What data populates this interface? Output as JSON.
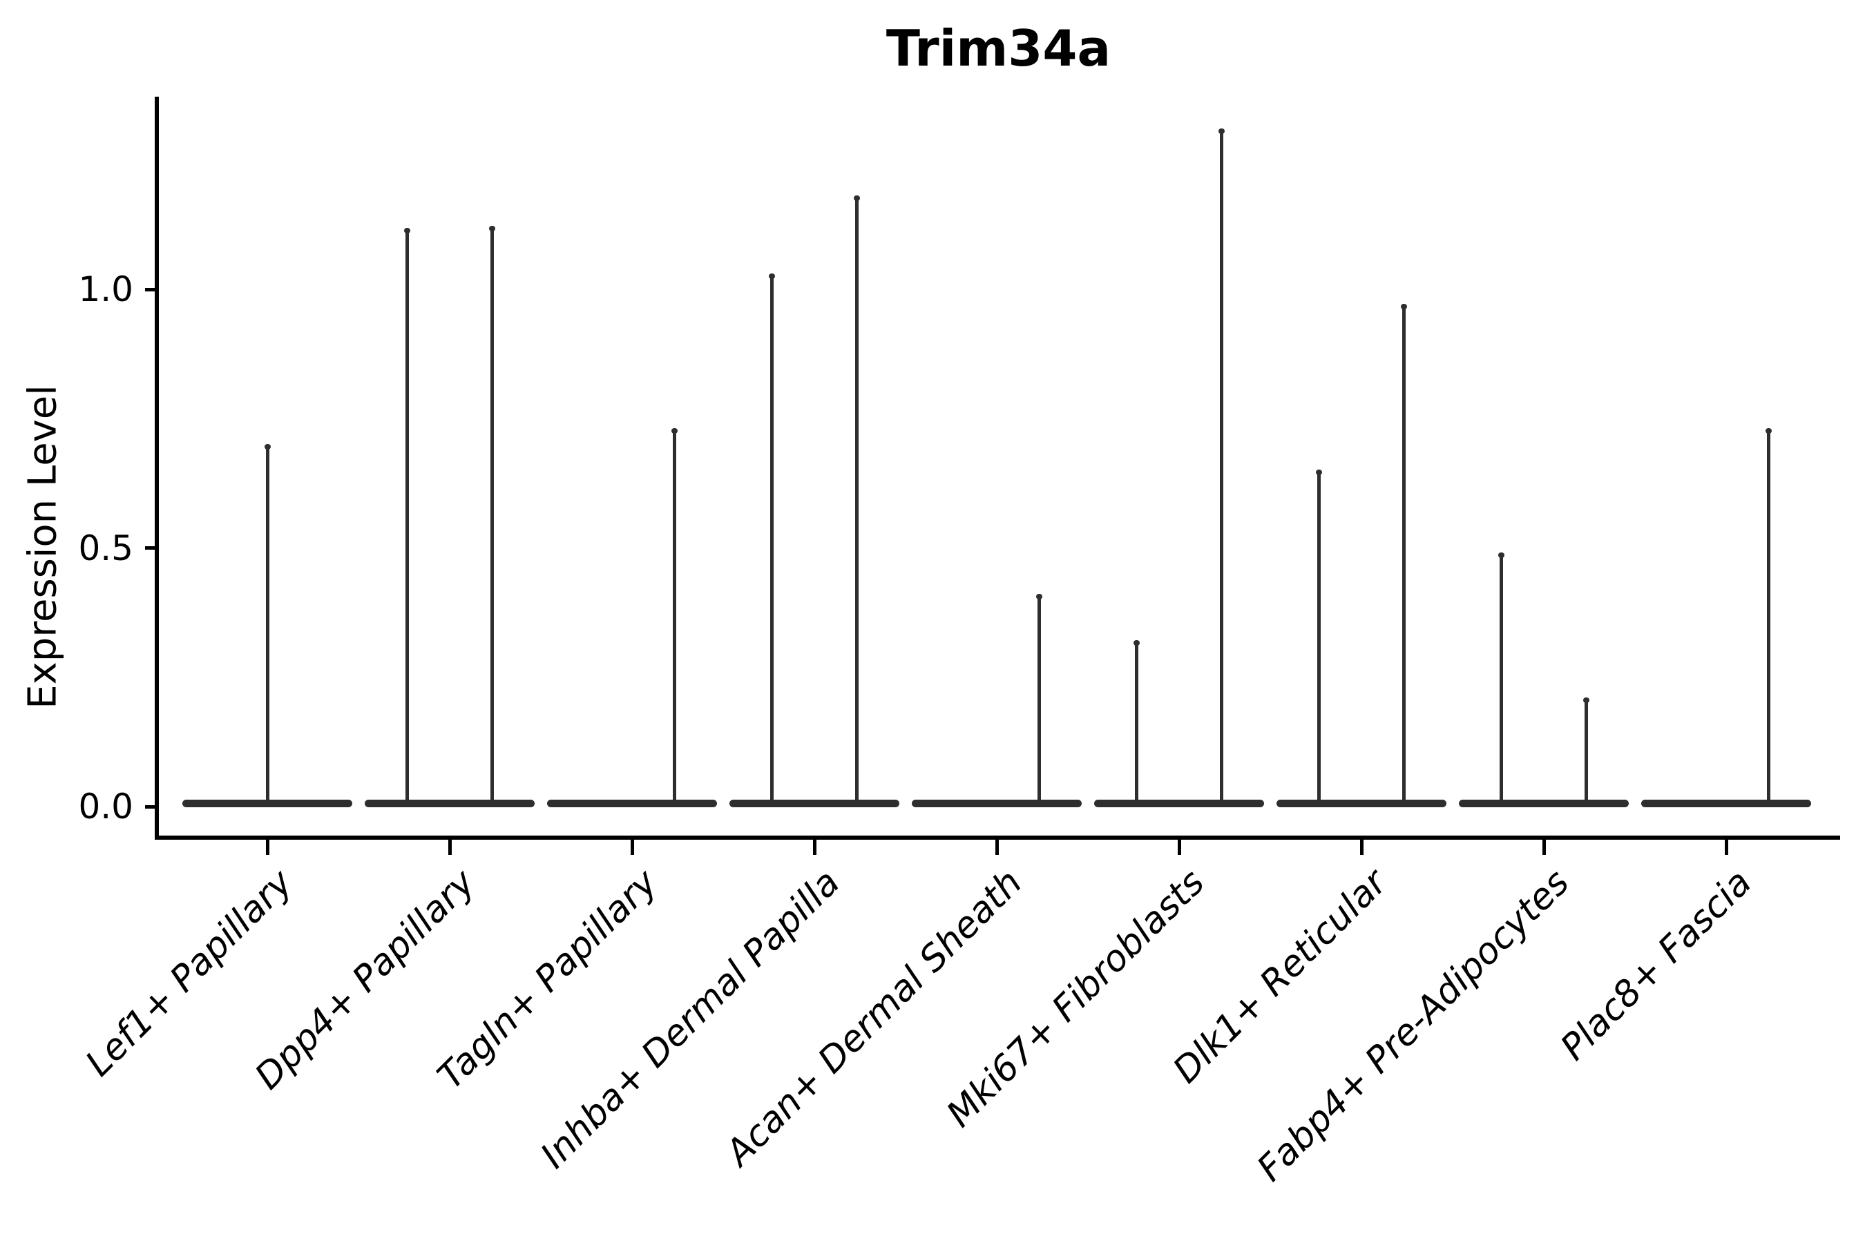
{
  "colors": {
    "violin": "#2e2e2e",
    "axis": "#000000",
    "text": "#000000",
    "background": "#ffffff"
  },
  "chart_data": {
    "type": "violin",
    "title": "Trim34a",
    "xlabel": "",
    "ylabel": "Expression Level",
    "ylim": [
      -0.06,
      1.37
    ],
    "grid": false,
    "legend": "none",
    "yticks": [
      {
        "value": 0.0,
        "label": "0.0"
      },
      {
        "value": 0.5,
        "label": "0.5"
      },
      {
        "value": 1.0,
        "label": "1.0"
      }
    ],
    "description": "Violin plot of Trim34a expression; each cell type shows a flat density bar at 0 with thin vertical density spikes reaching the maximum expression values.",
    "categories": [
      {
        "label": "Lef1+ Papillary",
        "spikes": [
          {
            "slot": "center",
            "value": 0.7
          }
        ]
      },
      {
        "label": "Dpp4+ Papillary",
        "spikes": [
          {
            "slot": "left",
            "value": 1.118
          },
          {
            "slot": "right",
            "value": 1.122
          }
        ]
      },
      {
        "label": "Tagln+ Papillary",
        "spikes": [
          {
            "slot": "right",
            "value": 0.73
          }
        ]
      },
      {
        "label": "Inhba+ Dermal Papilla",
        "spikes": [
          {
            "slot": "left",
            "value": 1.03
          },
          {
            "slot": "right",
            "value": 1.18
          }
        ]
      },
      {
        "label": "Acan+ Dermal Sheath",
        "spikes": [
          {
            "slot": "right",
            "value": 0.41
          }
        ]
      },
      {
        "label": "Mki67+ Fibroblasts",
        "spikes": [
          {
            "slot": "left",
            "value": 0.32
          },
          {
            "slot": "right",
            "value": 1.31
          }
        ]
      },
      {
        "label": "Dlk1+ Reticular",
        "spikes": [
          {
            "slot": "left",
            "value": 0.65
          },
          {
            "slot": "right",
            "value": 0.97
          }
        ]
      },
      {
        "label": "Fabp4+ Pre-Adipocytes",
        "spikes": [
          {
            "slot": "left",
            "value": 0.49
          },
          {
            "slot": "right",
            "value": 0.21
          }
        ]
      },
      {
        "label": "Plac8+ Fascia",
        "spikes": [
          {
            "slot": "right",
            "value": 0.73
          }
        ]
      }
    ]
  }
}
